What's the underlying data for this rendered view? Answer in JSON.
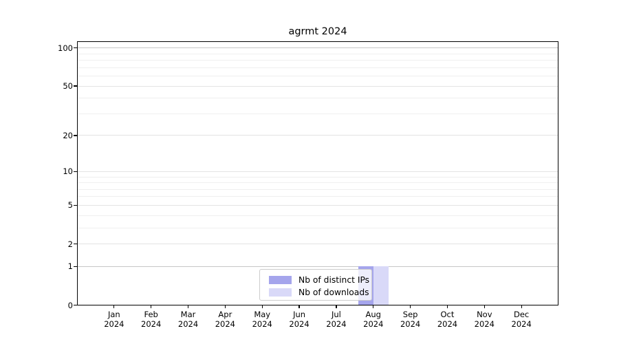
{
  "title": "agrmt 2024",
  "year": "2024",
  "legend": {
    "items": [
      {
        "label": "Nb of distinct IPs",
        "color": "#a5a5ec"
      },
      {
        "label": "Nb of downloads",
        "color": "#d9d9f8"
      }
    ]
  },
  "chart_data": {
    "type": "bar",
    "title": "agrmt 2024",
    "categories": [
      "Jan",
      "Feb",
      "Mar",
      "Apr",
      "May",
      "Jun",
      "Jul",
      "Aug",
      "Sep",
      "Oct",
      "Nov",
      "Dec"
    ],
    "category_year": "2024",
    "series": [
      {
        "name": "Nb of distinct IPs",
        "color": "#a5a5ec",
        "values": [
          0,
          0,
          0,
          0,
          0,
          0,
          0,
          1,
          0,
          0,
          0,
          0
        ]
      },
      {
        "name": "Nb of downloads",
        "color": "#d9d9f8",
        "values": [
          0,
          0,
          0,
          0,
          0,
          0,
          0,
          1,
          0,
          0,
          0,
          0
        ]
      }
    ],
    "xlabel": "",
    "ylabel": "",
    "y_scale": "log1p",
    "y_ticks": [
      0,
      1,
      2,
      5,
      10,
      20,
      50,
      100
    ],
    "y_minor_gridlines": [
      3,
      4,
      6,
      7,
      8,
      9,
      30,
      40,
      60,
      70,
      80,
      90
    ],
    "ylim": [
      0,
      113
    ],
    "grid": "horizontal",
    "legend_position": "lower center"
  }
}
